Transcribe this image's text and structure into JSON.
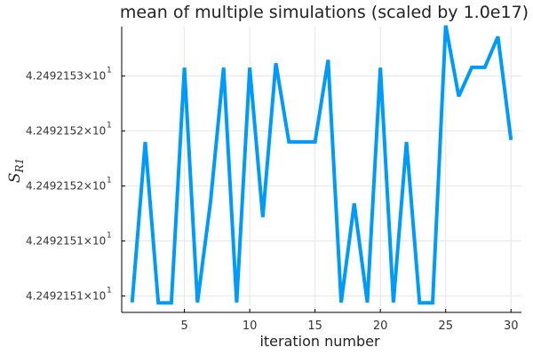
{
  "chart_data": {
    "type": "line",
    "title": "mean of multiple simulations (scaled by 1.0e17)",
    "xlabel": "iteration number",
    "ylabel": "S",
    "ylabel_subscript": "R1",
    "xlim": [
      0.2,
      30.8
    ],
    "ylim": [
      4.249215085,
      4.249215345
    ],
    "x_ticks": [
      {
        "value": 5,
        "label": "5"
      },
      {
        "value": 10,
        "label": "10"
      },
      {
        "value": 15,
        "label": "15"
      },
      {
        "value": 20,
        "label": "20"
      },
      {
        "value": 25,
        "label": "25"
      },
      {
        "value": 30,
        "label": "30"
      }
    ],
    "y_ticks": [
      {
        "value": 4.2492151,
        "label": "4.2492151×10",
        "exp": "1"
      },
      {
        "value": 4.24921515,
        "label": "4.2492151×10",
        "exp": "1"
      },
      {
        "value": 4.2492152,
        "label": "4.2492152×10",
        "exp": "1"
      },
      {
        "value": 4.24921525,
        "label": "4.2492152×10",
        "exp": "1"
      },
      {
        "value": 4.2492153,
        "label": "4.2492153×10",
        "exp": "1"
      }
    ],
    "grid": true,
    "series": [
      {
        "color": "#009AFA",
        "x": [
          1,
          2,
          3,
          4,
          5,
          6,
          7,
          8,
          9,
          10,
          11,
          12,
          13,
          14,
          15,
          16,
          17,
          18,
          19,
          20,
          21,
          22,
          23,
          24,
          25,
          26,
          27,
          28,
          29,
          30
        ],
        "y": [
          4.2492150941,
          4.2492152401,
          4.2492150937,
          4.2492150937,
          4.2492153077,
          4.2492150941,
          4.2492151857,
          4.2492153077,
          4.2492150941,
          4.2492153077,
          4.2492151717,
          4.2492153117,
          4.2492152401,
          4.2492152401,
          4.2492152401,
          4.2492153147,
          4.2492150941,
          4.2492151842,
          4.2492150941,
          4.2492153077,
          4.2492150941,
          4.2492152401,
          4.2492150937,
          4.2492150937,
          4.249215346,
          4.2492152816,
          4.249215308,
          4.249215308,
          4.2492153359,
          4.2492152419
        ]
      }
    ]
  }
}
